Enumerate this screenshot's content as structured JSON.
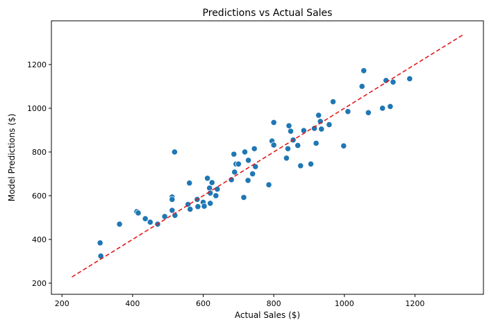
{
  "chart_data": {
    "type": "scatter",
    "title": "Predictions vs Actual Sales",
    "xlabel": "Actual Sales ($)",
    "ylabel": "Model Predictions ($)",
    "xlim": [
      170,
      1394
    ],
    "ylim": [
      149,
      1400
    ],
    "xticks": [
      200,
      400,
      600,
      800,
      1000,
      1200
    ],
    "yticks": [
      200,
      400,
      600,
      800,
      1000,
      1200
    ],
    "grid": false,
    "point_color": "#1f77b4",
    "reference_line": {
      "style": "dashed",
      "color": "#e31a1c",
      "from": [
        228,
        228
      ],
      "to": [
        1335,
        1335
      ]
    },
    "points": [
      [
        310,
        324
      ],
      [
        308,
        384
      ],
      [
        363,
        470
      ],
      [
        412,
        527
      ],
      [
        416,
        521
      ],
      [
        436,
        495
      ],
      [
        450,
        479
      ],
      [
        471,
        470
      ],
      [
        491,
        505
      ],
      [
        512,
        594
      ],
      [
        512,
        583
      ],
      [
        512,
        533
      ],
      [
        520,
        510
      ],
      [
        519,
        800
      ],
      [
        557,
        560
      ],
      [
        561,
        658
      ],
      [
        563,
        538
      ],
      [
        583,
        583
      ],
      [
        585,
        550
      ],
      [
        600,
        570
      ],
      [
        603,
        552
      ],
      [
        612,
        680
      ],
      [
        618,
        635
      ],
      [
        620,
        612
      ],
      [
        620,
        565
      ],
      [
        625,
        660
      ],
      [
        636,
        600
      ],
      [
        640,
        630
      ],
      [
        680,
        673
      ],
      [
        687,
        790
      ],
      [
        689,
        708
      ],
      [
        693,
        745
      ],
      [
        700,
        745
      ],
      [
        715,
        592
      ],
      [
        718,
        800
      ],
      [
        727,
        670
      ],
      [
        728,
        762
      ],
      [
        740,
        700
      ],
      [
        745,
        815
      ],
      [
        748,
        733
      ],
      [
        786,
        650
      ],
      [
        795,
        850
      ],
      [
        800,
        935
      ],
      [
        800,
        832
      ],
      [
        836,
        772
      ],
      [
        840,
        815
      ],
      [
        843,
        920
      ],
      [
        848,
        895
      ],
      [
        855,
        855
      ],
      [
        868,
        830
      ],
      [
        876,
        737
      ],
      [
        885,
        898
      ],
      [
        905,
        745
      ],
      [
        915,
        908
      ],
      [
        920,
        840
      ],
      [
        927,
        968
      ],
      [
        932,
        940
      ],
      [
        935,
        905
      ],
      [
        957,
        925
      ],
      [
        968,
        1030
      ],
      [
        998,
        828
      ],
      [
        1010,
        985
      ],
      [
        1050,
        1100
      ],
      [
        1055,
        1172
      ],
      [
        1068,
        980
      ],
      [
        1108,
        1000
      ],
      [
        1118,
        1127
      ],
      [
        1130,
        1008
      ],
      [
        1138,
        1120
      ],
      [
        1185,
        1135
      ]
    ]
  }
}
